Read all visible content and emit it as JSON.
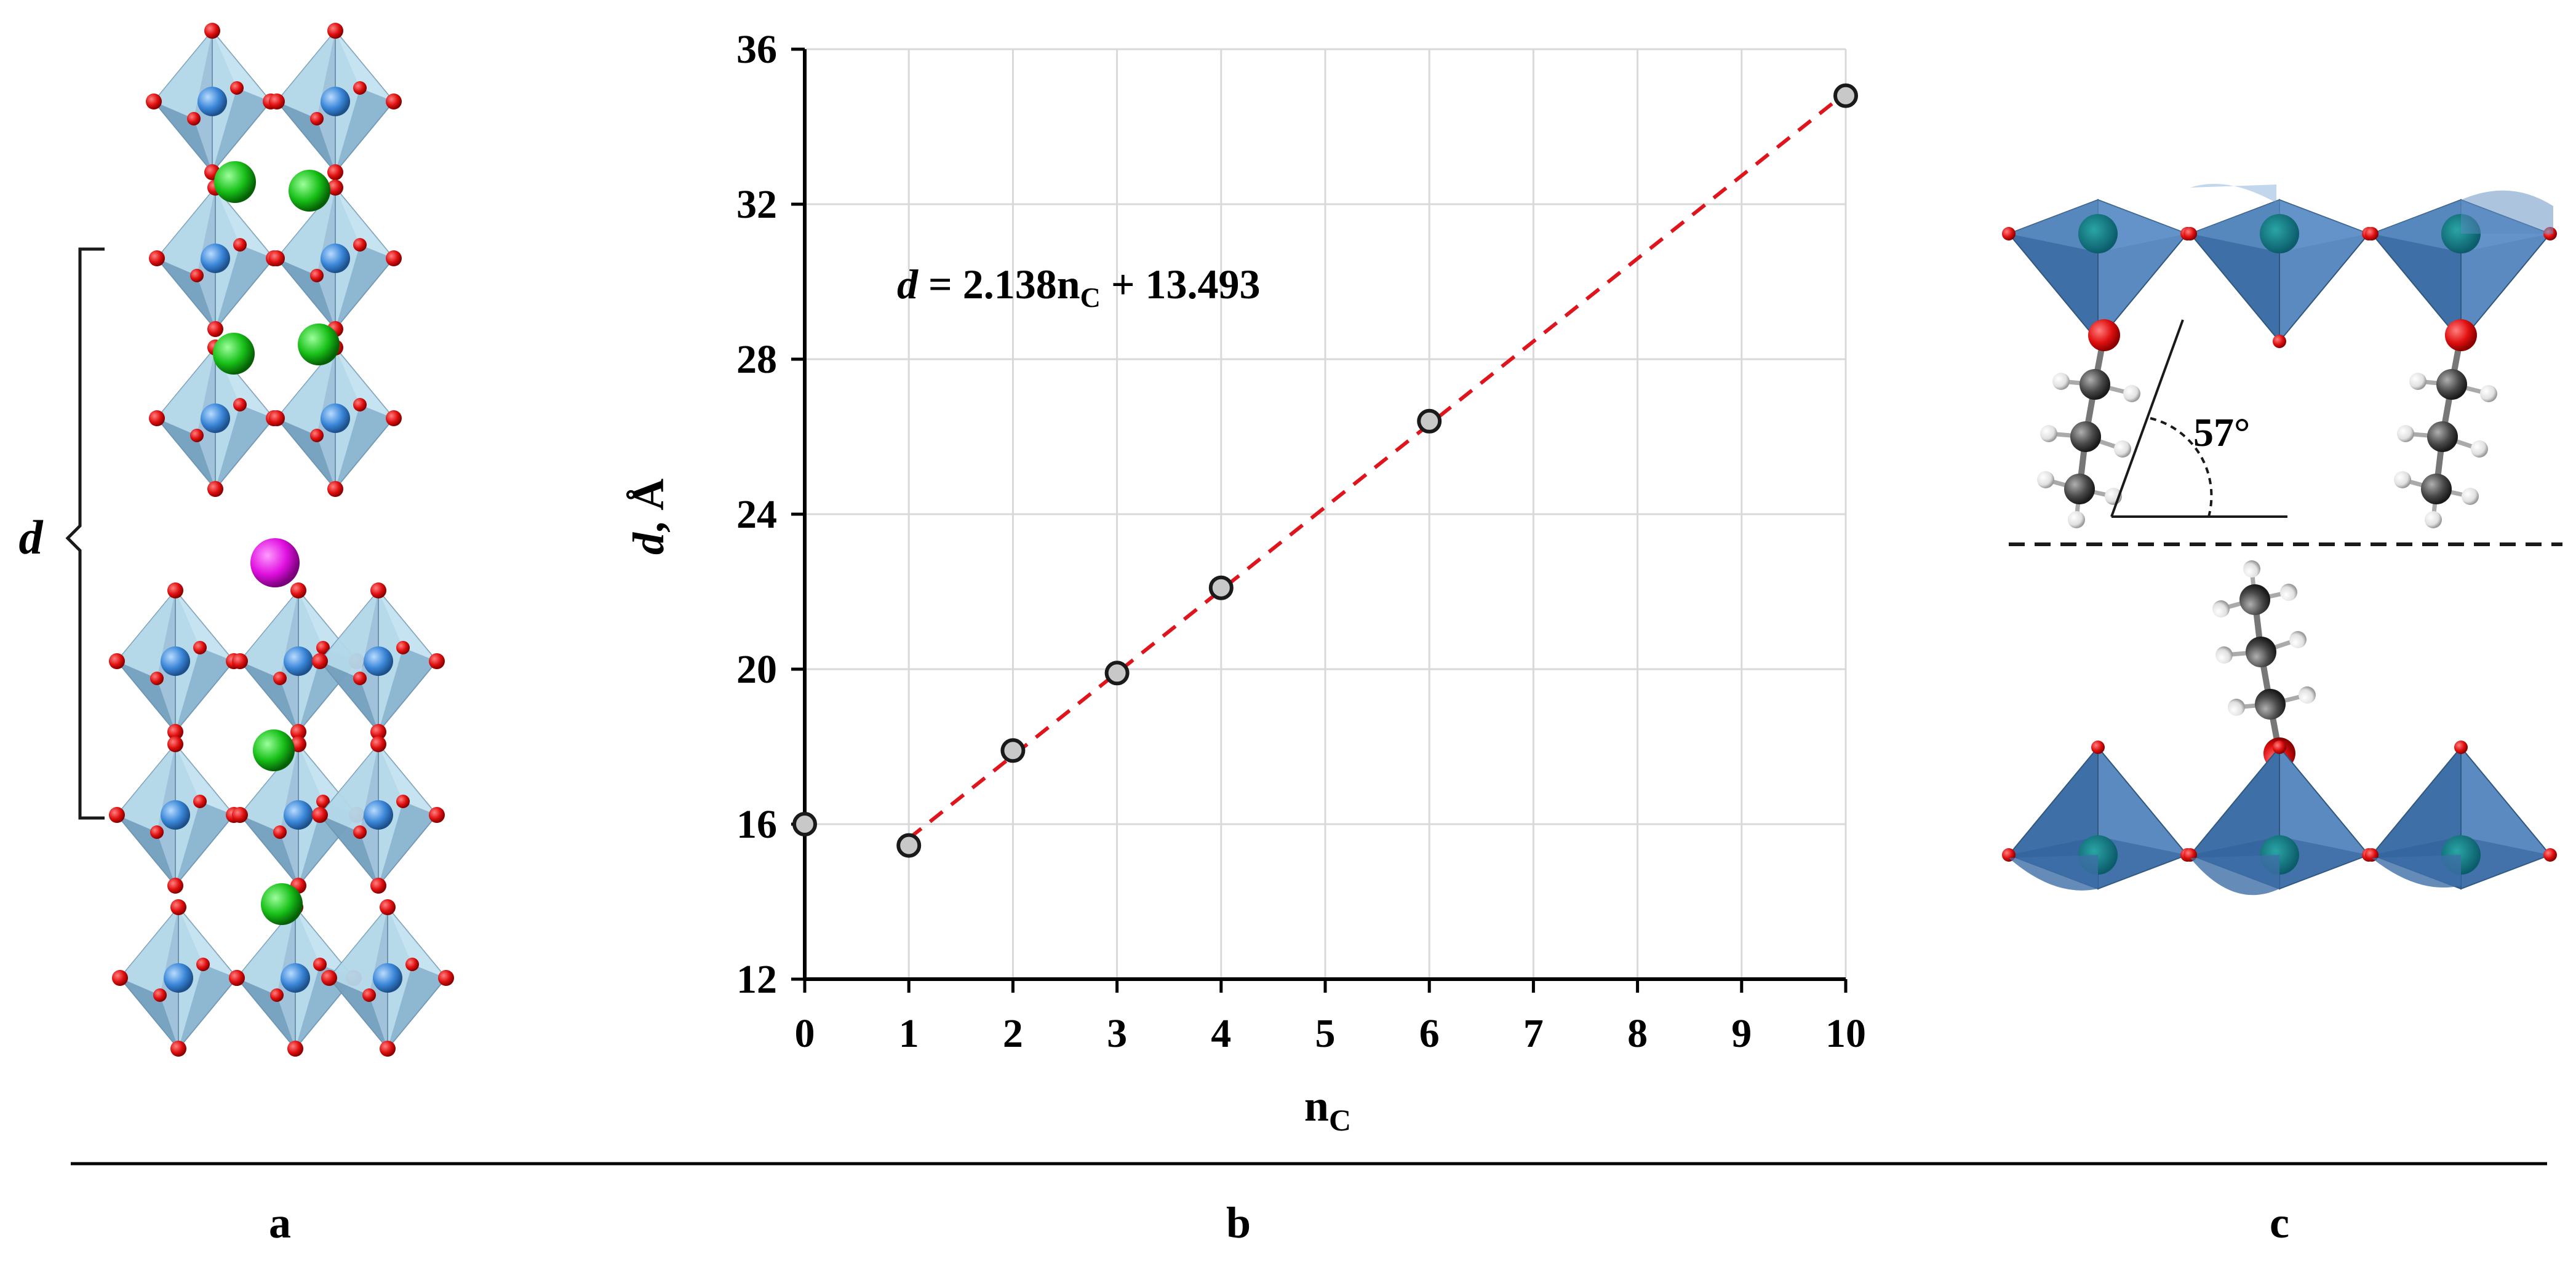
{
  "panel_labels": {
    "a": "a",
    "b": "b",
    "c": "c"
  },
  "panel_a": {
    "spacing_label": "d"
  },
  "panel_c": {
    "angle_label": "57°"
  },
  "chart_data": {
    "type": "scatter",
    "xlabel": "n",
    "xlabel_sub": "C",
    "ylabel": "d, Å",
    "xlim": [
      0,
      10
    ],
    "ylim": [
      12,
      36
    ],
    "x_ticks": [
      0,
      1,
      2,
      3,
      4,
      5,
      6,
      7,
      8,
      9,
      10
    ],
    "y_ticks": [
      12,
      16,
      20,
      24,
      28,
      32,
      36
    ],
    "grid": true,
    "series": [
      {
        "x": [
          0,
          1,
          2,
          3,
          4,
          6,
          10
        ],
        "y": [
          16.0,
          15.45,
          17.9,
          19.9,
          22.1,
          26.4,
          34.8
        ],
        "color": "#c8c8c8",
        "edge": "#1a1a1a"
      }
    ],
    "fit_line": {
      "slope": 2.138,
      "intercept": 13.493,
      "x_range": [
        1,
        10
      ],
      "color": "#e0141c",
      "style": "dashed"
    },
    "equation": {
      "lhs": "d",
      "text_a": " = 2.138n",
      "sub": "C",
      "text_b": " + 13.493"
    }
  }
}
